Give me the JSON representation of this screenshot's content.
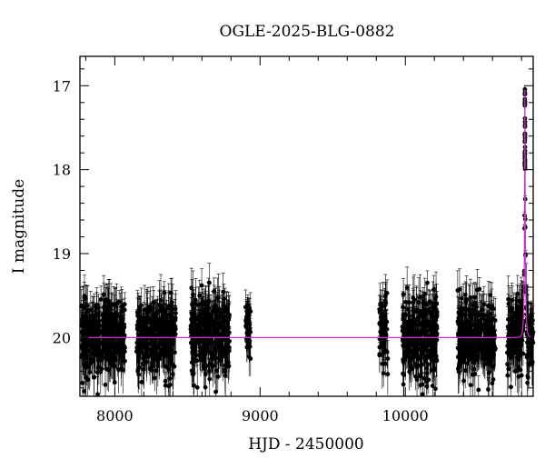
{
  "chart_data": {
    "type": "scatter",
    "title": "OGLE-2025-BLG-0882",
    "xlabel": "HJD - 2450000",
    "ylabel": "I magnitude",
    "xlim": [
      7760,
      10880
    ],
    "ylim": [
      20.7,
      16.65
    ],
    "y_inverted": true,
    "x_ticks": [
      8000,
      9000,
      10000
    ],
    "y_ticks": [
      17,
      18,
      19,
      20
    ],
    "grid": false,
    "marker_color": "#000000",
    "model_color": "#cc33cc",
    "observing_seasons": [
      {
        "start": 7770,
        "end": 8070,
        "mean_mag": 20.0,
        "scatter": 0.32,
        "errorbar": 0.22
      },
      {
        "start": 8150,
        "end": 8420,
        "mean_mag": 19.98,
        "scatter": 0.3,
        "errorbar": 0.22
      },
      {
        "start": 8520,
        "end": 8790,
        "mean_mag": 19.97,
        "scatter": 0.32,
        "errorbar": 0.22
      },
      {
        "start": 8900,
        "end": 8935,
        "mean_mag": 19.9,
        "scatter": 0.25,
        "errorbar": 0.18
      },
      {
        "start": 9820,
        "end": 9880,
        "mean_mag": 19.95,
        "scatter": 0.3,
        "errorbar": 0.22
      },
      {
        "start": 9980,
        "end": 10220,
        "mean_mag": 20.0,
        "scatter": 0.32,
        "errorbar": 0.22
      },
      {
        "start": 10360,
        "end": 10620,
        "mean_mag": 20.0,
        "scatter": 0.32,
        "errorbar": 0.22
      },
      {
        "start": 10700,
        "end": 10880,
        "mean_mag": 20.05,
        "scatter": 0.3,
        "errorbar": 0.22
      }
    ],
    "series": [
      {
        "name": "",
        "model": "point-lens",
        "baseline_mag": 20.0,
        "t0": 10823,
        "u0": 0.066,
        "tE": 9,
        "peak_mag": 17.05
      }
    ]
  }
}
